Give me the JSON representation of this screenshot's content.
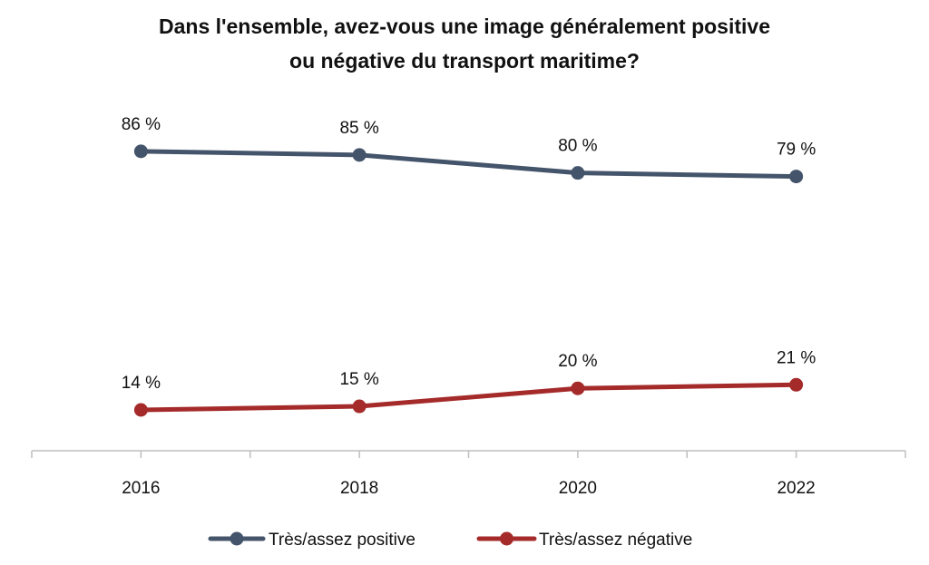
{
  "chart_data": {
    "type": "line",
    "title_line1": "Dans l'ensemble, avez-vous une image généralement positive",
    "title_line2": "ou négative du transport maritime?",
    "categories": [
      "2016",
      "2018",
      "2020",
      "2022"
    ],
    "ylim": [
      0,
      100
    ],
    "grid": false,
    "legend_position": "bottom",
    "series": [
      {
        "name": "Très/assez positive",
        "color": "#44546a",
        "values": [
          86,
          85,
          80,
          79
        ],
        "labels": [
          "86 %",
          "85 %",
          "80 %",
          "79 %"
        ]
      },
      {
        "name": "Très/assez négative",
        "color": "#a52a2a",
        "values": [
          14,
          15,
          20,
          21
        ],
        "labels": [
          "14 %",
          "15 %",
          "20 %",
          "21 %"
        ]
      }
    ]
  }
}
